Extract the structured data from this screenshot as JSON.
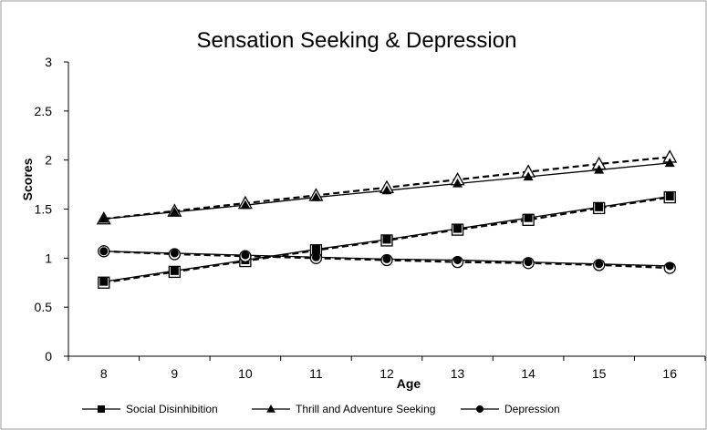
{
  "chart_data": {
    "type": "line",
    "title": "Sensation Seeking & Depression",
    "xlabel": "Age",
    "ylabel": "Scores",
    "x": [
      8,
      9,
      10,
      11,
      12,
      13,
      14,
      15,
      16
    ],
    "x_tick_labels": [
      "8",
      "9",
      "10",
      "11",
      "12",
      "13",
      "14",
      "15",
      "16"
    ],
    "ylim": [
      0,
      3
    ],
    "y_tick_labels": [
      "0",
      "0.5",
      "1",
      "1.5",
      "2",
      "2.5",
      "3"
    ],
    "grid": false,
    "legend_position": "bottom",
    "series": [
      {
        "name": "Social Disinhibition",
        "marker": "square",
        "values": [
          0.76,
          0.87,
          0.98,
          1.09,
          1.19,
          1.3,
          1.41,
          1.52,
          1.63
        ],
        "observed": [
          0.75,
          0.86,
          0.97,
          1.08,
          1.18,
          1.29,
          1.39,
          1.51,
          1.62
        ]
      },
      {
        "name": "Thrill and Adventure Seeking",
        "marker": "triangle",
        "values": [
          1.4,
          1.47,
          1.54,
          1.62,
          1.69,
          1.76,
          1.83,
          1.9,
          1.97
        ],
        "observed": [
          1.4,
          1.48,
          1.56,
          1.64,
          1.72,
          1.8,
          1.88,
          1.96,
          2.03
        ]
      },
      {
        "name": "Depression",
        "marker": "circle",
        "values": [
          1.07,
          1.05,
          1.03,
          1.01,
          0.99,
          0.98,
          0.96,
          0.94,
          0.92
        ],
        "observed": [
          1.07,
          1.04,
          1.02,
          1.0,
          0.98,
          0.96,
          0.95,
          0.93,
          0.9
        ]
      }
    ]
  }
}
